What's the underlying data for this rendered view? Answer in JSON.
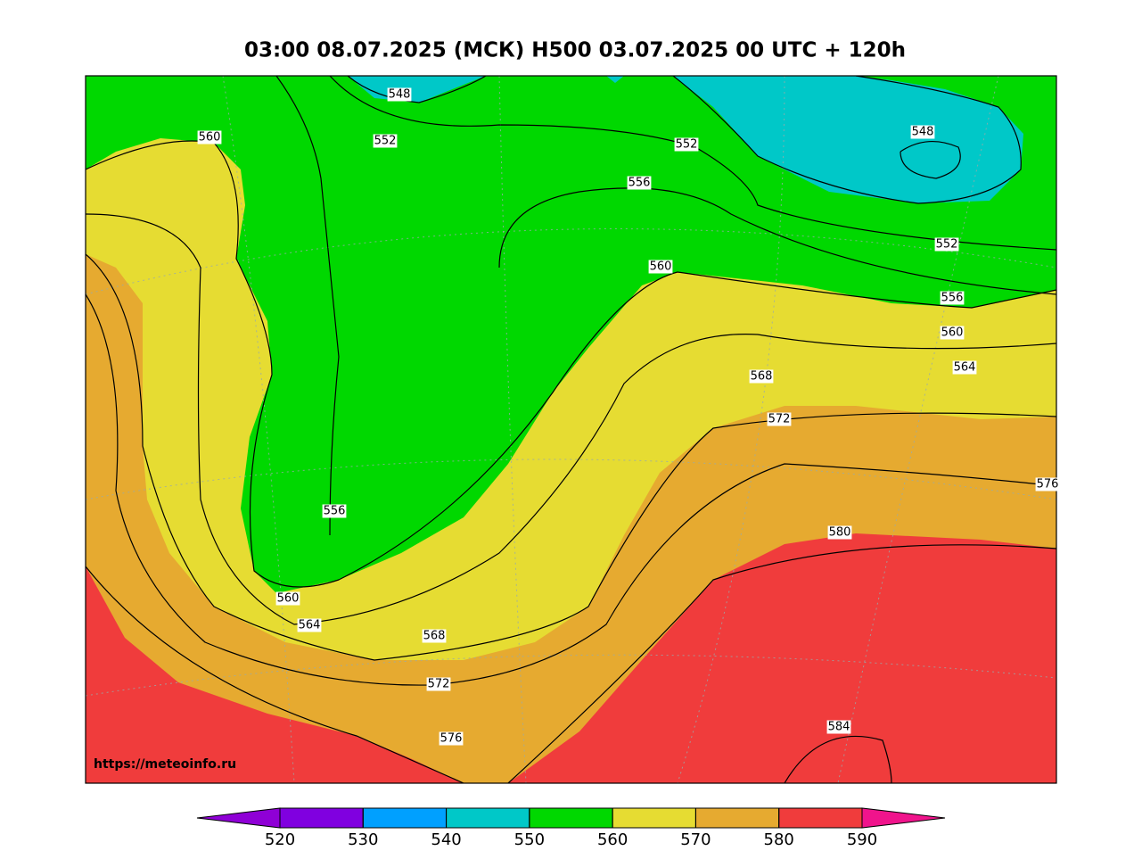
{
  "title": "03:00 08.07.2025 (МСК) H500  03.07.2025 00 UTC + 120h",
  "map": {
    "source": "https://meteoinfo.ru",
    "contour_labels": [
      "548",
      "552",
      "560",
      "552",
      "556",
      "548",
      "552",
      "556",
      "560",
      "564",
      "560",
      "568",
      "572",
      "576",
      "580",
      "556",
      "560",
      "564",
      "568",
      "572",
      "576",
      "584"
    ]
  },
  "colorbar": {
    "ticks": [
      520,
      530,
      540,
      550,
      560,
      570,
      580,
      590
    ],
    "colors": [
      "#8f00d6",
      "#8000e0",
      "#00a0ff",
      "#00c8c8",
      "#00d800",
      "#e6dc32",
      "#e6aa30",
      "#f03c3c",
      "#f0148c"
    ]
  }
}
